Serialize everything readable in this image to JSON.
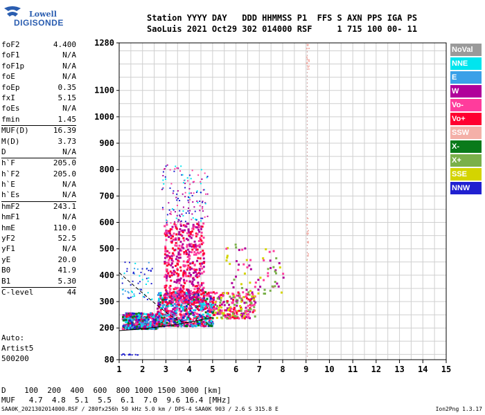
{
  "logo": {
    "line1": "Lowell",
    "line2": "DIGISONDE"
  },
  "header": {
    "line1": "Station YYYY DAY   DDD HHMMSS P1  FFS S AXN PPS IGA PS",
    "line2": "SaoLuis 2021 Oct29 302 014000 RSF     1 715 100 00- 11"
  },
  "params": [
    {
      "k": "foF2",
      "v": "4.400"
    },
    {
      "k": "foF1",
      "v": "N/A"
    },
    {
      "k": "foF1p",
      "v": "N/A"
    },
    {
      "k": "foE",
      "v": "N/A"
    },
    {
      "k": "foEp",
      "v": "0.35"
    },
    {
      "k": "fxI",
      "v": "5.15"
    },
    {
      "k": "foEs",
      "v": "N/A"
    },
    {
      "k": "fmin",
      "v": "1.45"
    },
    {
      "k": "MUF(D)",
      "v": "16.39",
      "sep": true
    },
    {
      "k": "M(D)",
      "v": "3.73"
    },
    {
      "k": "D",
      "v": "N/A"
    },
    {
      "k": "h`F",
      "v": "205.0",
      "sep": true
    },
    {
      "k": "h`F2",
      "v": "205.0"
    },
    {
      "k": "h`E",
      "v": "N/A"
    },
    {
      "k": "h`Es",
      "v": "N/A"
    },
    {
      "k": "hmF2",
      "v": "243.1",
      "sep": true
    },
    {
      "k": "hmF1",
      "v": "N/A"
    },
    {
      "k": "hmE",
      "v": "110.0"
    },
    {
      "k": "yF2",
      "v": "52.5"
    },
    {
      "k": "yF1",
      "v": "N/A"
    },
    {
      "k": "yE",
      "v": "20.0"
    },
    {
      "k": "B0",
      "v": "41.9"
    },
    {
      "k": "B1",
      "v": "5.30"
    },
    {
      "k": "C-level",
      "v": "44",
      "sep": true
    }
  ],
  "auto": {
    "l1": "Auto:",
    "l2": "Artist5",
    "l3": "500200"
  },
  "legend": [
    {
      "label": "NoVal",
      "color": "#9a9a9a"
    },
    {
      "label": "NNE",
      "color": "#00e5ee"
    },
    {
      "label": "E",
      "color": "#3aa0e8"
    },
    {
      "label": "W",
      "color": "#b0009a"
    },
    {
      "label": "Vo-",
      "color": "#ff3c9c"
    },
    {
      "label": "Vo+",
      "color": "#ff0030"
    },
    {
      "label": "SSW",
      "color": "#f4b0a8"
    },
    {
      "label": "X-",
      "color": "#0a7a1a"
    },
    {
      "label": "X+",
      "color": "#7ab04a"
    },
    {
      "label": "SSE",
      "color": "#d4d400"
    },
    {
      "label": "NNW",
      "color": "#2020d0"
    }
  ],
  "chart_data": {
    "type": "scatter",
    "xlim": [
      1,
      15
    ],
    "ylim": [
      80,
      1280
    ],
    "x_ticks": [
      1,
      2,
      3,
      4,
      5,
      6,
      7,
      8,
      9,
      10,
      11,
      12,
      13,
      14,
      15
    ],
    "y_ticks": [
      80,
      200,
      300,
      400,
      500,
      600,
      700,
      800,
      900,
      1000,
      1100,
      1280
    ],
    "grid": true,
    "legend_placement": "right",
    "vline_freq": 9.05
  },
  "bottom": {
    "d_row": "D    100  200  400  600  800 1000 1500 3000 [km]",
    "muf_row": "MUF   4.7  4.8  5.1  5.5  6.1  7.0  9.6 16.4 [MHz]"
  },
  "footer": {
    "left": "SAA0K_2021302014000.RSF / 280fx256h 50 kHz 5.0 km / DPS-4 SAA0K 903 / 2.6 S 315.8 E",
    "right": "Ion2Png 1.3.17"
  }
}
